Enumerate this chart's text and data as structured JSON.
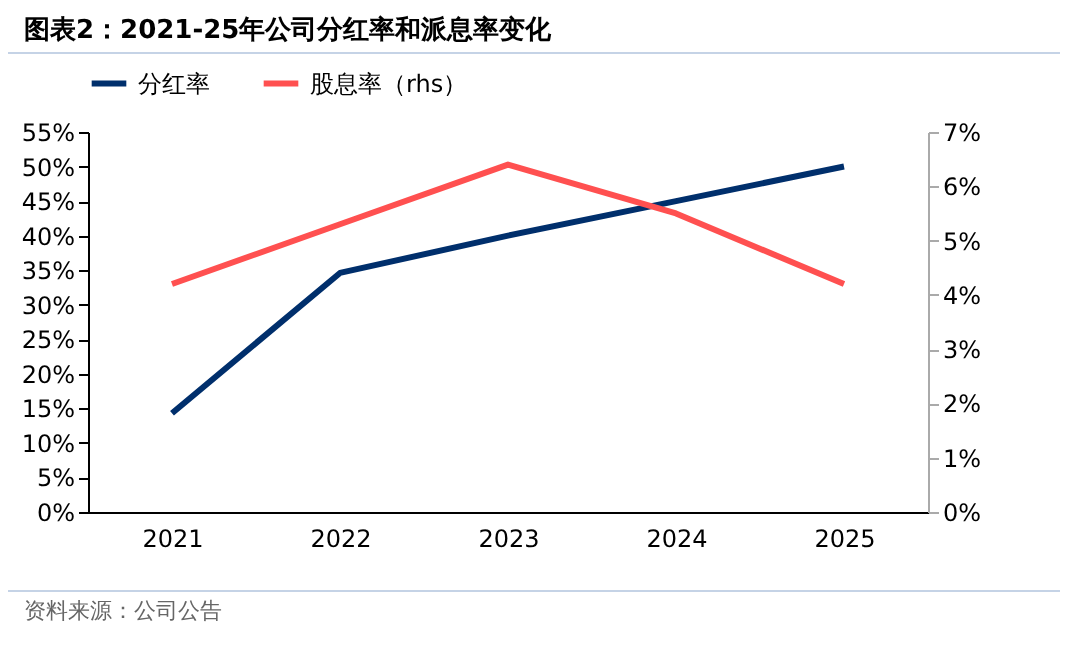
{
  "chart_data": {
    "type": "line",
    "title": "图表2：2021-25年公司分红率和派息率变化",
    "categories": [
      "2021",
      "2022",
      "2023",
      "2024",
      "2025"
    ],
    "series": [
      {
        "name": "分红率",
        "color": "#002f6c",
        "values": [
          14.3,
          34.6,
          40,
          45,
          50
        ]
      },
      {
        "name": "股息率（rhs）",
        "color": "#ff5050",
        "axis": "y2",
        "values": [
          4.2,
          5.3,
          6.4,
          5.5,
          4.2
        ]
      }
    ],
    "ylim": [
      0,
      55
    ],
    "yticks": [
      {
        "value": 0,
        "label": "0%"
      },
      {
        "value": 5,
        "label": "5%"
      },
      {
        "value": 10,
        "label": "10%"
      },
      {
        "value": 15,
        "label": "15%"
      },
      {
        "value": 20,
        "label": "20%"
      },
      {
        "value": 25,
        "label": "25%"
      },
      {
        "value": 30,
        "label": "30%"
      },
      {
        "value": 35,
        "label": "35%"
      },
      {
        "value": 40,
        "label": "40%"
      },
      {
        "value": 45,
        "label": "45%"
      },
      {
        "value": 50,
        "label": "50%"
      },
      {
        "value": 55,
        "label": "55%"
      }
    ],
    "y2lim": [
      0,
      7
    ],
    "y2ticks": [
      {
        "value": 0,
        "label": "0%"
      },
      {
        "value": 1,
        "label": "1%"
      },
      {
        "value": 2,
        "label": "2%"
      },
      {
        "value": 3,
        "label": "3%"
      },
      {
        "value": 4,
        "label": "4%"
      },
      {
        "value": 5,
        "label": "5%"
      },
      {
        "value": 6,
        "label": "6%"
      },
      {
        "value": 7,
        "label": "7%"
      }
    ],
    "legend": "top",
    "annotations": [
      "资料来源：公司公告"
    ]
  }
}
